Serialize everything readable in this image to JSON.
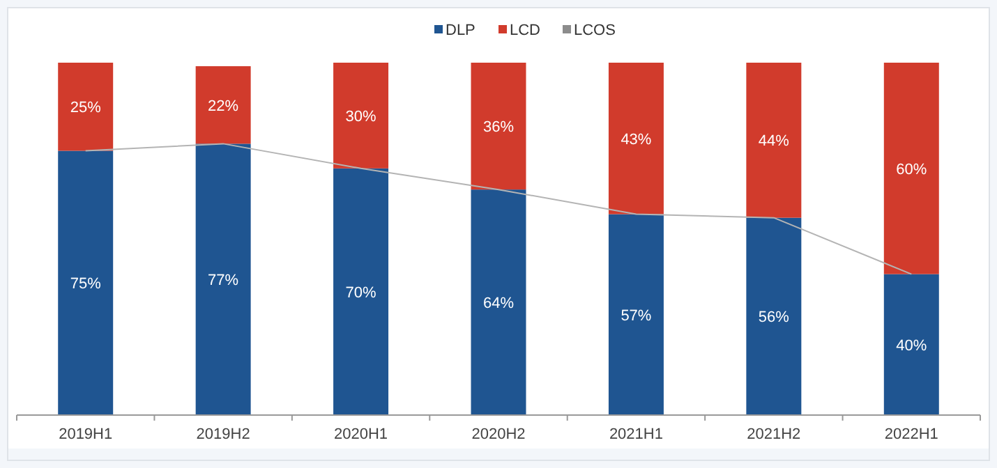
{
  "chart_data": {
    "type": "bar",
    "stacked": true,
    "legend": "top",
    "categories": [
      "2019H1",
      "2019H2",
      "2020H1",
      "2020H2",
      "2021H1",
      "2021H2",
      "2022H1"
    ],
    "series": [
      {
        "name": "DLP",
        "color": "#1f5591",
        "values": [
          75,
          77,
          70,
          64,
          57,
          56,
          40
        ],
        "value_labels": [
          "75%",
          "77%",
          "70%",
          "64%",
          "57%",
          "56%",
          "40%"
        ]
      },
      {
        "name": "LCD",
        "color": "#d13b2c",
        "values": [
          25,
          22,
          30,
          36,
          43,
          44,
          60
        ],
        "value_labels": [
          "25%",
          "22%",
          "30%",
          "36%",
          "43%",
          "44%",
          "60%"
        ]
      },
      {
        "name": "LCOS",
        "color": "#8c8c8c",
        "values": [
          0,
          0,
          0,
          0,
          0,
          0,
          0
        ]
      },
      {
        "type": "line",
        "color": "#b4b4b4",
        "values": [
          75,
          77,
          70,
          64,
          57,
          56,
          40
        ]
      }
    ]
  }
}
